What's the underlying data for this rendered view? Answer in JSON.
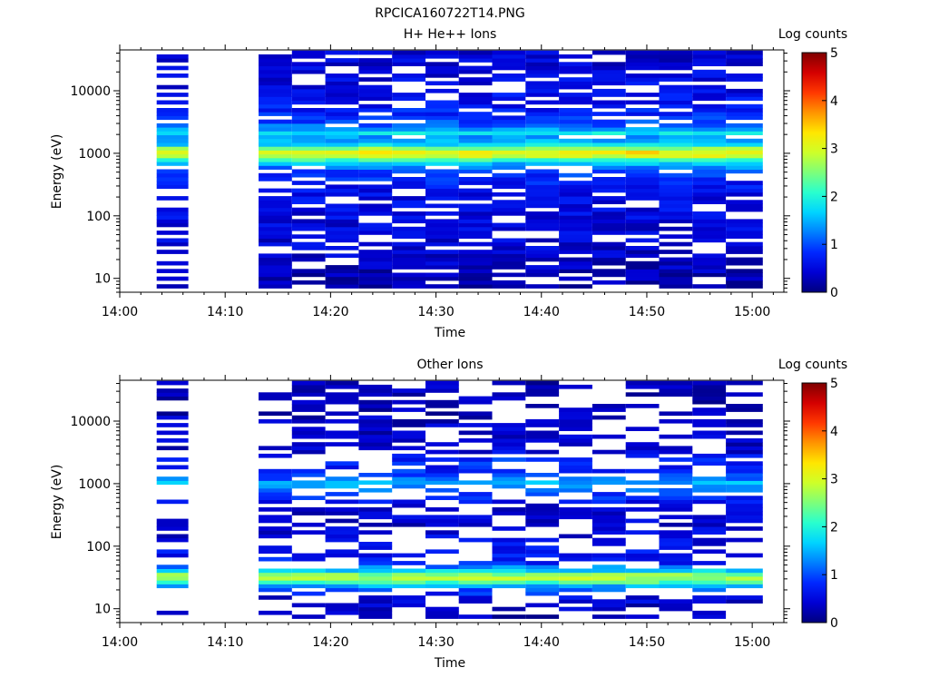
{
  "figure_title": "RPCICA160722T14.PNG",
  "colors": {
    "background": "#ffffff",
    "colormap": [
      "#00007f",
      "#0000d4",
      "#0028ff",
      "#0080ff",
      "#00d4ff",
      "#29ffce",
      "#7dff7a",
      "#ceff29",
      "#ffe600",
      "#ff9400",
      "#ff3800",
      "#d40000",
      "#7f0000"
    ]
  },
  "chart_data": [
    {
      "type": "heatmap",
      "title": "H+ He++ Ions",
      "xlabel": "Time",
      "ylabel": "Energy (eV)",
      "y_scale": "log",
      "ylim": [
        6,
        45000
      ],
      "xlim": [
        "14:00",
        "15:03"
      ],
      "x_ticks": [
        "14:00",
        "14:10",
        "14:20",
        "14:30",
        "14:40",
        "14:50",
        "15:00"
      ],
      "y_ticks": [
        "10",
        "100",
        "1000",
        "10000"
      ],
      "colorbar": {
        "label": "Log counts",
        "range": [
          0,
          5
        ],
        "ticks": [
          "0",
          "1",
          "2",
          "3",
          "4",
          "5"
        ]
      },
      "time_bins": [
        {
          "start": "14:03:30",
          "end": "14:06:30",
          "sparse": true
        },
        {
          "start": "14:13:10",
          "end": "14:16:20"
        },
        {
          "start": "14:16:20",
          "end": "14:19:30"
        },
        {
          "start": "14:19:30",
          "end": "14:22:40"
        },
        {
          "start": "14:22:40",
          "end": "14:25:50"
        },
        {
          "start": "14:25:50",
          "end": "14:29:00"
        },
        {
          "start": "14:29:00",
          "end": "14:32:10"
        },
        {
          "start": "14:32:10",
          "end": "14:35:20"
        },
        {
          "start": "14:35:20",
          "end": "14:38:30"
        },
        {
          "start": "14:38:30",
          "end": "14:41:40"
        },
        {
          "start": "14:41:40",
          "end": "14:44:50"
        },
        {
          "start": "14:44:50",
          "end": "14:48:00"
        },
        {
          "start": "14:48:00",
          "end": "14:51:10"
        },
        {
          "start": "14:51:10",
          "end": "14:54:20"
        },
        {
          "start": "14:54:20",
          "end": "14:57:30"
        },
        {
          "start": "14:57:30",
          "end": "15:01:00"
        }
      ],
      "spectrum_profile": [
        {
          "energy": 8,
          "log_counts": 0.2
        },
        {
          "energy": 15,
          "log_counts": 0.3
        },
        {
          "energy": 40,
          "log_counts": 0.45
        },
        {
          "energy": 100,
          "log_counts": 0.5
        },
        {
          "energy": 250,
          "log_counts": 0.6
        },
        {
          "energy": 500,
          "log_counts": 0.9
        },
        {
          "energy": 700,
          "log_counts": 1.6
        },
        {
          "energy": 850,
          "log_counts": 2.6
        },
        {
          "energy": 1000,
          "log_counts": 3.4
        },
        {
          "energy": 1150,
          "log_counts": 2.9
        },
        {
          "energy": 1400,
          "log_counts": 1.7
        },
        {
          "energy": 1800,
          "log_counts": 1.3
        },
        {
          "energy": 2100,
          "log_counts": 1.9
        },
        {
          "energy": 2600,
          "log_counts": 1.2
        },
        {
          "energy": 4000,
          "log_counts": 0.75
        },
        {
          "energy": 10000,
          "log_counts": 0.55
        },
        {
          "energy": 40000,
          "log_counts": 0.4
        }
      ],
      "fill_fraction": 0.78
    },
    {
      "type": "heatmap",
      "title": "Other Ions",
      "xlabel": "Time",
      "ylabel": "Energy (eV)",
      "y_scale": "log",
      "ylim": [
        6,
        45000
      ],
      "xlim": [
        "14:00",
        "15:03"
      ],
      "x_ticks": [
        "14:00",
        "14:10",
        "14:20",
        "14:30",
        "14:40",
        "14:50",
        "15:00"
      ],
      "y_ticks": [
        "10",
        "100",
        "1000",
        "10000"
      ],
      "colorbar": {
        "label": "Log counts",
        "range": [
          0,
          5
        ],
        "ticks": [
          "0",
          "1",
          "2",
          "3",
          "4",
          "5"
        ]
      },
      "time_bins": [
        {
          "start": "14:03:30",
          "end": "14:06:30",
          "sparse": true
        },
        {
          "start": "14:13:10",
          "end": "14:16:20"
        },
        {
          "start": "14:16:20",
          "end": "14:19:30"
        },
        {
          "start": "14:19:30",
          "end": "14:22:40"
        },
        {
          "start": "14:22:40",
          "end": "14:25:50"
        },
        {
          "start": "14:25:50",
          "end": "14:29:00"
        },
        {
          "start": "14:29:00",
          "end": "14:32:10"
        },
        {
          "start": "14:32:10",
          "end": "14:35:20"
        },
        {
          "start": "14:35:20",
          "end": "14:38:30"
        },
        {
          "start": "14:38:30",
          "end": "14:41:40"
        },
        {
          "start": "14:41:40",
          "end": "14:44:50"
        },
        {
          "start": "14:44:50",
          "end": "14:48:00"
        },
        {
          "start": "14:48:00",
          "end": "14:51:10"
        },
        {
          "start": "14:51:10",
          "end": "14:54:20"
        },
        {
          "start": "14:54:20",
          "end": "14:57:30"
        },
        {
          "start": "14:57:30",
          "end": "15:01:00"
        }
      ],
      "spectrum_profile": [
        {
          "energy": 8,
          "log_counts": 0.25
        },
        {
          "energy": 15,
          "log_counts": 0.45
        },
        {
          "energy": 22,
          "log_counts": 1.2
        },
        {
          "energy": 28,
          "log_counts": 2.5
        },
        {
          "energy": 33,
          "log_counts": 2.9
        },
        {
          "energy": 40,
          "log_counts": 1.8
        },
        {
          "energy": 55,
          "log_counts": 0.7
        },
        {
          "energy": 150,
          "log_counts": 0.45
        },
        {
          "energy": 400,
          "log_counts": 0.35
        },
        {
          "energy": 800,
          "log_counts": 1.1
        },
        {
          "energy": 1000,
          "log_counts": 1.6
        },
        {
          "energy": 1300,
          "log_counts": 0.9
        },
        {
          "energy": 2000,
          "log_counts": 0.7
        },
        {
          "energy": 2300,
          "log_counts": 0.9
        },
        {
          "energy": 3500,
          "log_counts": 0.35
        },
        {
          "energy": 40000,
          "log_counts": 0.25
        }
      ],
      "fill_fraction": 0.52
    }
  ]
}
